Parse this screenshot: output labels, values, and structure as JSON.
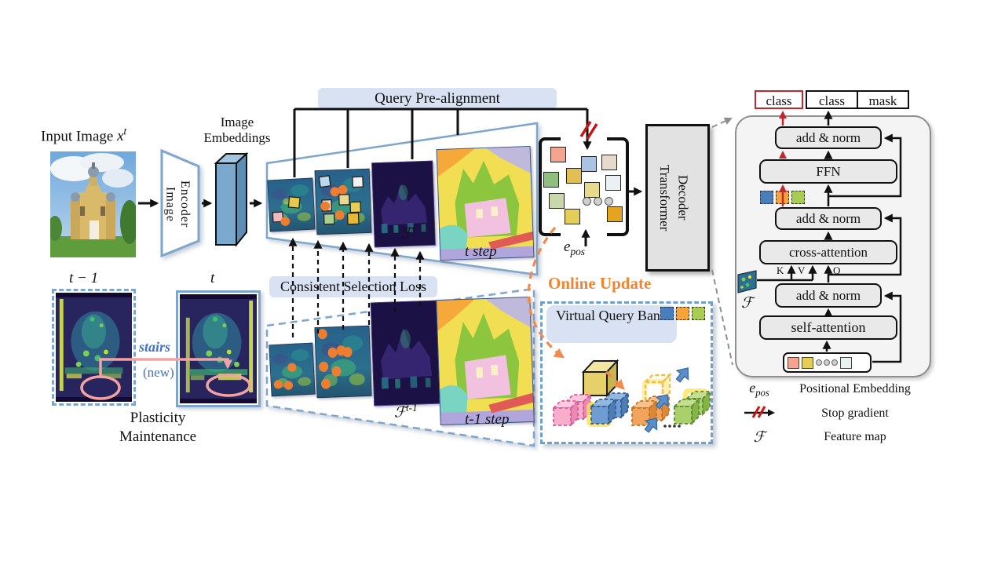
{
  "colors": {
    "accent_blue": "#7EA6CC",
    "pill_bg": "#D9E2F2",
    "online_orange": "#ED8633",
    "stop_gradient_red": "#CC1111",
    "class_new_red": "#C0282D",
    "note_blue": "#4472C4",
    "plasticity_pink": "#F2A2A2"
  },
  "input": {
    "label": "Input Image",
    "var": "x",
    "var_sup": "t"
  },
  "encoder": {
    "line1": "Image",
    "line2": "Encoder"
  },
  "embeddings_label": "Image Embeddings",
  "prealign_label": "Query Pre-alignment",
  "loss_label": "Consistent Selection Loss",
  "current": {
    "fmap": "ℱ",
    "fmap_sup": "t",
    "step": "t step"
  },
  "previous": {
    "fmap": "ℱ",
    "fmap_sup": "t-1",
    "step": "t-1 step"
  },
  "queries": {
    "epos": "e",
    "epos_sub": "pos",
    "token_colors": [
      "#F2A58F",
      "#A9C4E3",
      "#E7D9CC",
      "#8FBF7F",
      "#E2BF55",
      "#E6DA8E",
      "#EAF1F3",
      "#C8D8AA",
      "#E5CE58",
      "#E3A51F"
    ]
  },
  "decoder": {
    "line1": "Transformer",
    "line2": "Decoder"
  },
  "online_update": "Online Update",
  "bank": {
    "label": "Virtual Query Bank",
    "mini_square_colors": [
      "#4A7EBB",
      "#F5A33B",
      "#A9CC52"
    ],
    "cube_colors": [
      "#F8AECB",
      "#6E9CD3",
      "#F2A35C",
      "#E6D06A",
      "#A9D06B"
    ]
  },
  "panel": {
    "class_new": "class",
    "class": "class",
    "mask": "mask",
    "add_norm": "add & norm",
    "ffn": "FFN",
    "cross_attention": "cross-attention",
    "self_attention": "self-attention",
    "k": "K",
    "v": "V",
    "q": "Q",
    "fmap": "ℱ",
    "token_colors_left": [
      "#F2A58F",
      "#E5CE58"
    ],
    "token_colors_right": [
      "#EAF1F3"
    ]
  },
  "legend": {
    "epos": "e",
    "epos_sub": "pos",
    "epos_label": "Positional Embedding",
    "stop_label": "Stop gradient",
    "fmap": "ℱ",
    "fmap_label": "Feature map"
  },
  "plasticity": {
    "t_prev": "t − 1",
    "t_cur": "t",
    "stairs": "stairs",
    "new_tag": "(new)",
    "caption": "Plasticity Maintenance"
  }
}
